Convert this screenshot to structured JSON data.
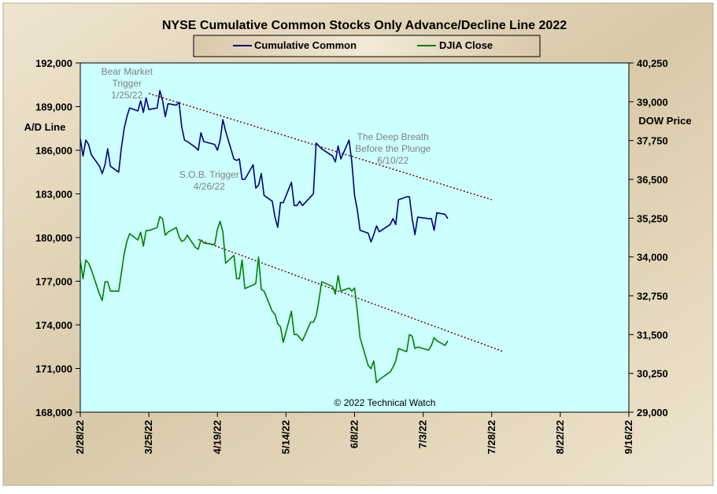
{
  "chart_data": {
    "type": "line",
    "title": "NYSE Cumulative  Common Stocks Only Advance/Decline  Line 2022",
    "ylabel_left": "A/D Line",
    "ylabel_right": "DOW Price",
    "credit": "© 2022 Technical Watch",
    "ylim_left": [
      168000,
      192000
    ],
    "ylim_right": [
      29000,
      40250
    ],
    "yticks_left": [
      "192,000",
      "189,000",
      "186,000",
      "183,000",
      "180,000",
      "177,000",
      "174,000",
      "171,000",
      "168,000"
    ],
    "yticks_right": [
      "40,250",
      "39,000",
      "37,750",
      "36,500",
      "35,250",
      "34,000",
      "32,750",
      "31,500",
      "30,250",
      "29,000"
    ],
    "xticks": [
      "2/28/22",
      "3/25/22",
      "4/19/22",
      "5/14/22",
      "6/8/22",
      "7/3/22",
      "7/28/22",
      "8/22/22",
      "9/16/22"
    ],
    "xrange": [
      "2022-02-28",
      "2022-09-16"
    ],
    "legend": {
      "placement": "top-center",
      "entries": [
        "Cumulative Common",
        "DJIA Close"
      ]
    },
    "colors": {
      "plot_bg": "#ccffff",
      "frame_bg": "#e8dcc4",
      "common": "#000080",
      "djia": "#008000",
      "trendline": "#800000",
      "annotation": "#808080"
    },
    "series": [
      {
        "name": "Cumulative Common",
        "axis": "left",
        "x": [
          "2022-02-28",
          "2022-03-01",
          "2022-03-02",
          "2022-03-03",
          "2022-03-04",
          "2022-03-07",
          "2022-03-08",
          "2022-03-09",
          "2022-03-10",
          "2022-03-11",
          "2022-03-14",
          "2022-03-15",
          "2022-03-16",
          "2022-03-17",
          "2022-03-18",
          "2022-03-21",
          "2022-03-22",
          "2022-03-23",
          "2022-03-24",
          "2022-03-25",
          "2022-03-28",
          "2022-03-29",
          "2022-03-30",
          "2022-03-31",
          "2022-04-01",
          "2022-04-04",
          "2022-04-05",
          "2022-04-06",
          "2022-04-07",
          "2022-04-08",
          "2022-04-11",
          "2022-04-12",
          "2022-04-13",
          "2022-04-14",
          "2022-04-18",
          "2022-04-19",
          "2022-04-20",
          "2022-04-21",
          "2022-04-22",
          "2022-04-25",
          "2022-04-26",
          "2022-04-27",
          "2022-04-28",
          "2022-04-29",
          "2022-05-02",
          "2022-05-03",
          "2022-05-04",
          "2022-05-05",
          "2022-05-06",
          "2022-05-09",
          "2022-05-10",
          "2022-05-11",
          "2022-05-12",
          "2022-05-13",
          "2022-05-16",
          "2022-05-17",
          "2022-05-18",
          "2022-05-19",
          "2022-05-20",
          "2022-05-23",
          "2022-05-24",
          "2022-05-25",
          "2022-05-26",
          "2022-05-27",
          "2022-05-31",
          "2022-06-01",
          "2022-06-02",
          "2022-06-03",
          "2022-06-06",
          "2022-06-07",
          "2022-06-08",
          "2022-06-09",
          "2022-06-10",
          "2022-06-13",
          "2022-06-14",
          "2022-06-15",
          "2022-06-16",
          "2022-06-17",
          "2022-06-21",
          "2022-06-22",
          "2022-06-23",
          "2022-06-24",
          "2022-06-27",
          "2022-06-28",
          "2022-06-29",
          "2022-06-30",
          "2022-07-01",
          "2022-07-05",
          "2022-07-06",
          "2022-07-07",
          "2022-07-08",
          "2022-07-11",
          "2022-07-12"
        ],
        "values": [
          186800,
          185600,
          186700,
          186400,
          185700,
          184900,
          184400,
          185000,
          186100,
          184900,
          184500,
          186200,
          187500,
          188300,
          188900,
          188700,
          189400,
          188600,
          189600,
          188800,
          188900,
          190100,
          189400,
          188300,
          189200,
          189100,
          189300,
          187600,
          186700,
          186600,
          186200,
          186000,
          187200,
          186600,
          186400,
          186000,
          186700,
          188100,
          187300,
          185400,
          185300,
          185400,
          184000,
          184000,
          185000,
          183400,
          183600,
          184400,
          182900,
          182500,
          181400,
          180700,
          182400,
          182400,
          183800,
          182200,
          182200,
          182500,
          182200,
          182800,
          183000,
          186500,
          186300,
          186100,
          185600,
          185200,
          186300,
          185400,
          186700,
          185200,
          182900,
          181900,
          180500,
          180300,
          179700,
          180200,
          180800,
          180400,
          180900,
          181300,
          180900,
          182600,
          182800,
          182800,
          181300,
          180200,
          181400,
          181300,
          181300,
          180500,
          181700,
          181600,
          181300
        ],
        "legend_label": "Cumulative Common"
      },
      {
        "name": "DJIA Close",
        "axis": "right",
        "x": [
          "2022-02-28",
          "2022-03-01",
          "2022-03-02",
          "2022-03-03",
          "2022-03-04",
          "2022-03-07",
          "2022-03-08",
          "2022-03-09",
          "2022-03-10",
          "2022-03-11",
          "2022-03-14",
          "2022-03-15",
          "2022-03-16",
          "2022-03-17",
          "2022-03-18",
          "2022-03-21",
          "2022-03-22",
          "2022-03-23",
          "2022-03-24",
          "2022-03-25",
          "2022-03-28",
          "2022-03-29",
          "2022-03-30",
          "2022-03-31",
          "2022-04-01",
          "2022-04-04",
          "2022-04-05",
          "2022-04-06",
          "2022-04-07",
          "2022-04-08",
          "2022-04-11",
          "2022-04-12",
          "2022-04-13",
          "2022-04-14",
          "2022-04-18",
          "2022-04-19",
          "2022-04-20",
          "2022-04-21",
          "2022-04-22",
          "2022-04-25",
          "2022-04-26",
          "2022-04-27",
          "2022-04-28",
          "2022-04-29",
          "2022-05-02",
          "2022-05-03",
          "2022-05-04",
          "2022-05-05",
          "2022-05-06",
          "2022-05-09",
          "2022-05-10",
          "2022-05-11",
          "2022-05-12",
          "2022-05-13",
          "2022-05-16",
          "2022-05-17",
          "2022-05-18",
          "2022-05-19",
          "2022-05-20",
          "2022-05-23",
          "2022-05-24",
          "2022-05-25",
          "2022-05-26",
          "2022-05-27",
          "2022-05-31",
          "2022-06-01",
          "2022-06-02",
          "2022-06-03",
          "2022-06-06",
          "2022-06-07",
          "2022-06-08",
          "2022-06-09",
          "2022-06-10",
          "2022-06-13",
          "2022-06-14",
          "2022-06-15",
          "2022-06-16",
          "2022-06-17",
          "2022-06-21",
          "2022-06-22",
          "2022-06-23",
          "2022-06-24",
          "2022-06-27",
          "2022-06-28",
          "2022-06-29",
          "2022-06-30",
          "2022-07-01",
          "2022-07-05",
          "2022-07-06",
          "2022-07-07",
          "2022-07-08",
          "2022-07-11",
          "2022-07-12"
        ],
        "values": [
          33900,
          33300,
          33900,
          33800,
          33600,
          32800,
          32600,
          33200,
          33200,
          32900,
          32900,
          33500,
          34100,
          34500,
          34750,
          34550,
          34800,
          34350,
          34850,
          34850,
          34950,
          35300,
          35230,
          34700,
          34800,
          34950,
          34650,
          34500,
          34550,
          34700,
          34300,
          34250,
          34550,
          34450,
          34400,
          34900,
          35150,
          34800,
          33800,
          34050,
          33300,
          33300,
          33900,
          32980,
          33100,
          33150,
          34000,
          32950,
          32900,
          32250,
          32150,
          31850,
          31750,
          31250,
          32250,
          31500,
          31500,
          31400,
          31300,
          31900,
          31900,
          32100,
          32600,
          33200,
          33050,
          32800,
          33400,
          32900,
          33000,
          32900,
          33000,
          32250,
          31400,
          30500,
          30400,
          30650,
          29950,
          30050,
          30300,
          30450,
          30650,
          31050,
          30950,
          31500,
          31450,
          31050,
          31100,
          31000,
          31150,
          31400,
          31300,
          31150,
          31300
        ],
        "legend_label": "DJIA Close"
      }
    ],
    "trendlines": [
      {
        "series": "Cumulative Common",
        "from": [
          "2022-03-25",
          189900
        ],
        "to": [
          "2022-07-28",
          182600
        ]
      },
      {
        "series": "DJIA Close",
        "from": [
          "2022-04-12",
          34560
        ],
        "to": [
          "2022-08-01",
          30960
        ]
      }
    ],
    "annotations": [
      {
        "lines": [
          "Bear Market",
          "Trigger",
          "1/25/22"
        ],
        "anchor_date": "2022-03-17",
        "anchor_left_value": 191200
      },
      {
        "lines": [
          "The  Deep Breath",
          "Before the Plunge",
          "6/10/22"
        ],
        "anchor_date": "2022-06-22",
        "anchor_left_value": 186700
      },
      {
        "lines": [
          "S.O.B. Trigger",
          "4/26/22"
        ],
        "anchor_date": "2022-04-16",
        "anchor_left_value": 184100
      }
    ]
  }
}
